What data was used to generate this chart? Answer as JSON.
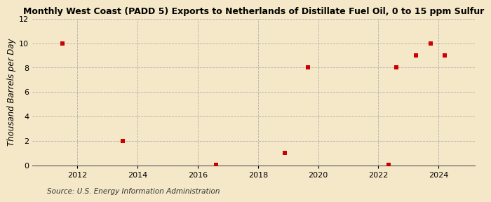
{
  "title": "Monthly West Coast (PADD 5) Exports to Netherlands of Distillate Fuel Oil, 0 to 15 ppm Sulfur",
  "ylabel": "Thousand Barrels per Day",
  "source": "Source: U.S. Energy Information Administration",
  "background_color": "#f5e8c8",
  "data_color": "#cc0000",
  "xlim": [
    2010.5,
    2025.2
  ],
  "ylim": [
    0,
    12
  ],
  "yticks": [
    0,
    2,
    4,
    6,
    8,
    10,
    12
  ],
  "xticks": [
    2012,
    2014,
    2016,
    2018,
    2020,
    2022,
    2024
  ],
  "x": [
    2011.5,
    2013.5,
    2016.6,
    2018.9,
    2019.65,
    2022.35,
    2022.6,
    2023.25,
    2023.75,
    2024.2
  ],
  "y": [
    10,
    2,
    0.05,
    1,
    8,
    0.05,
    8,
    9,
    10,
    9
  ],
  "marker_size": 4,
  "title_fontsize": 9,
  "ylabel_fontsize": 8.5,
  "tick_fontsize": 8,
  "source_fontsize": 7.5
}
